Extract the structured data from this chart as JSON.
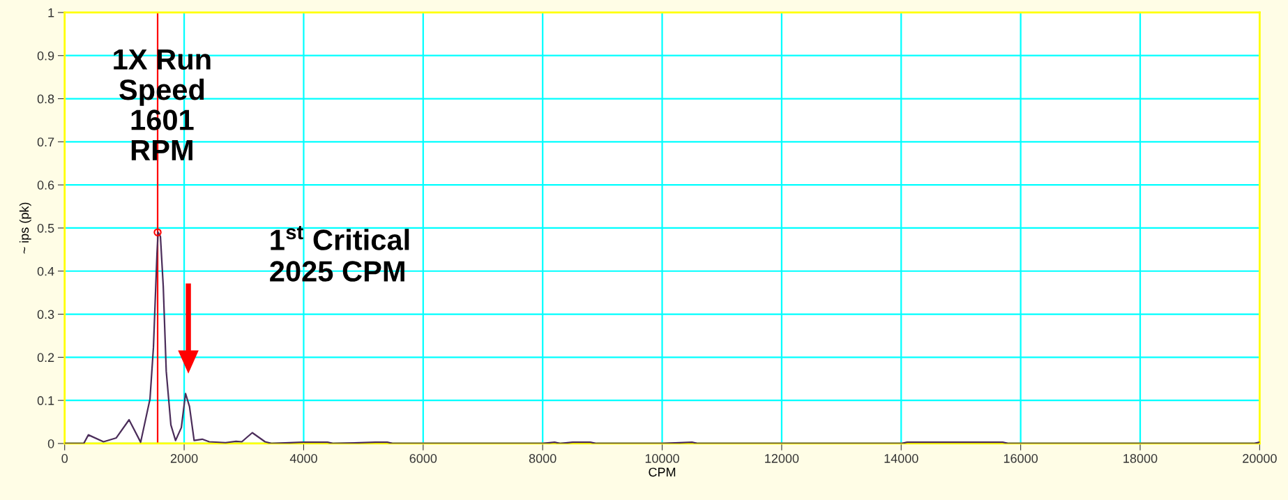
{
  "chart_data": {
    "type": "line",
    "xlabel": "CPM",
    "ylabel": "~ ips (pk)",
    "xlim": [
      0,
      20000
    ],
    "xticks": [
      0,
      2000,
      4000,
      6000,
      8000,
      10000,
      12000,
      14000,
      16000,
      18000,
      20000
    ],
    "ylim": [
      0,
      1
    ],
    "yticks": [
      0,
      0.1,
      0.2,
      0.3,
      0.4,
      0.5,
      0.6,
      0.7,
      0.8,
      0.9,
      1
    ],
    "grid": true,
    "marker": "none",
    "line_style": "solid",
    "series": [
      {
        "color": "#4b2d5a",
        "x": [
          0,
          319,
          397,
          650,
          864,
          1078,
          1272,
          1428,
          1486,
          1545,
          1564,
          1603,
          1650,
          1700,
          1778,
          1856,
          1953,
          2023,
          2089,
          2167,
          2303,
          2420,
          2693,
          2868,
          2965,
          3140,
          3354,
          3471,
          3977,
          4400,
          4500,
          5200,
          5400,
          5500,
          8000,
          8200,
          8300,
          8500,
          8800,
          8900,
          10000,
          10500,
          10600,
          14000,
          14100,
          14400,
          15700,
          15800,
          19900,
          20000
        ],
        "values": [
          0,
          0,
          0.02,
          0.004,
          0.013,
          0.055,
          0.003,
          0.103,
          0.223,
          0.44,
          0.49,
          0.48,
          0.365,
          0.168,
          0.043,
          0.007,
          0.037,
          0.116,
          0.086,
          0.007,
          0.01,
          0.004,
          0.002,
          0.005,
          0.004,
          0.025,
          0.004,
          0,
          0.003,
          0.003,
          0,
          0.003,
          0.003,
          0,
          0,
          0.003,
          0,
          0.003,
          0.003,
          0,
          0,
          0.003,
          0,
          0,
          0.003,
          0.003,
          0.003,
          0,
          0,
          0.003
        ]
      },
      {
        "type": "scatter",
        "color": "#ff0000",
        "marker": "circle",
        "x": [
          1556
        ],
        "values": [
          0.49
        ]
      }
    ],
    "ref_lines": [
      {
        "axis": "x",
        "value": 1556,
        "color": "#ff0000",
        "line_style": "solid"
      }
    ],
    "annotations": [
      "1X Run\nSpeed\n1601\nRPM",
      "1$^{st}$ Critical\n2025 CPM"
    ]
  }
}
